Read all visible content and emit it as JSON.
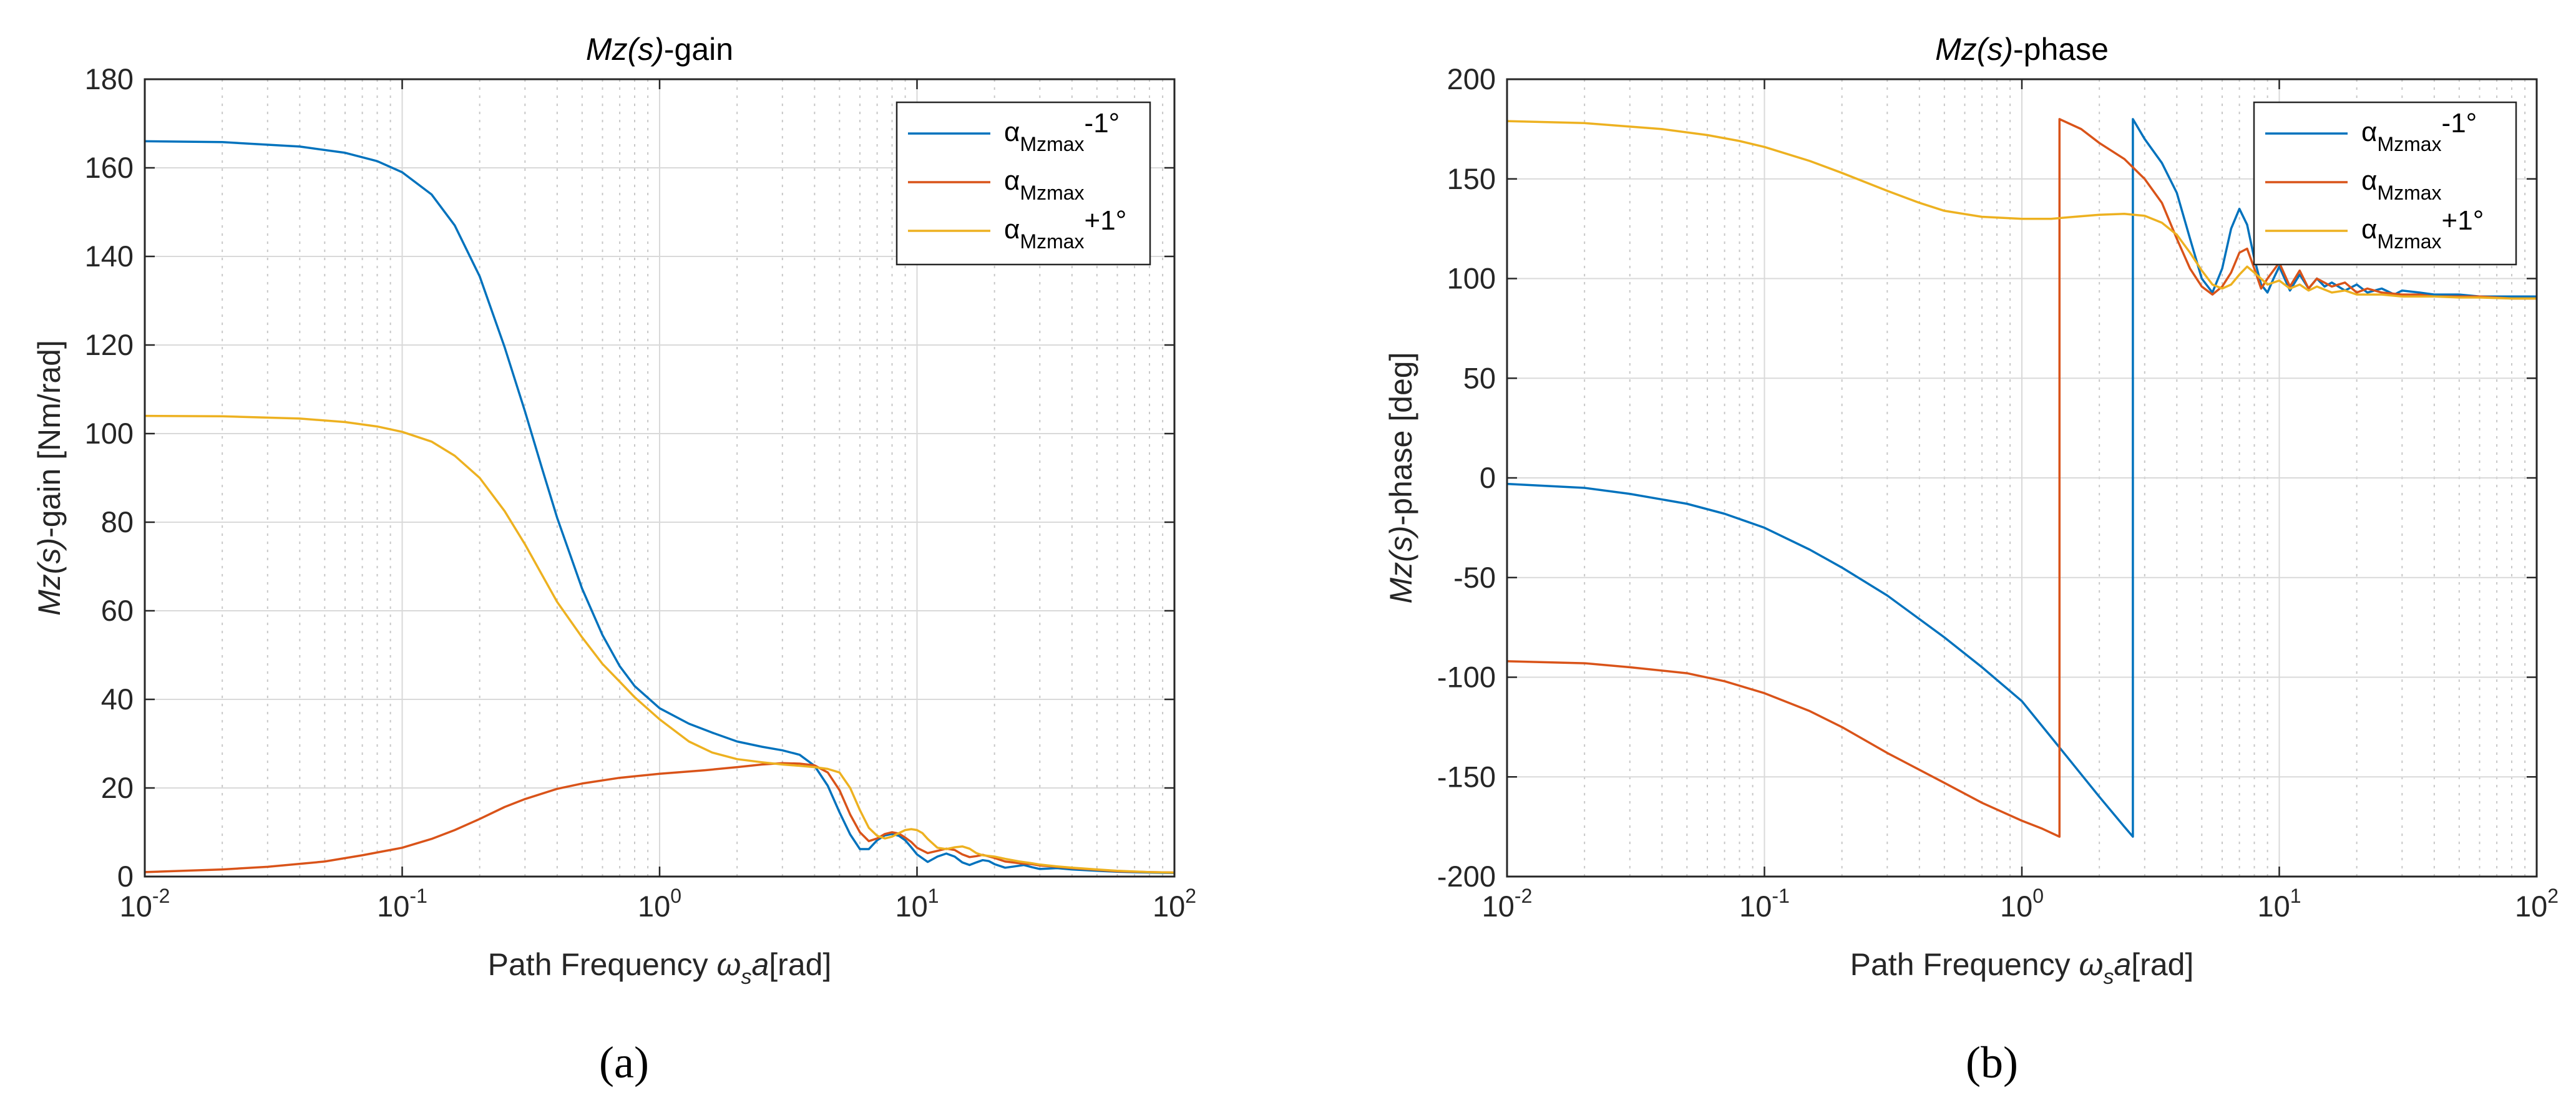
{
  "figure": {
    "subcaption_a": "(a)",
    "subcaption_b": "(b)"
  },
  "chart_data": [
    {
      "type": "line",
      "title_italic": "Mz(s)",
      "title_rest": "-gain",
      "xlabel_prefix": "Path Frequency ",
      "xlabel_omega": "ω",
      "xlabel_sub": "s",
      "xlabel_a": "a",
      "xlabel_suffix": "[rad]",
      "ylabel_italic": "Mz(s)",
      "ylabel_rest": "-gain [Nm/rad]",
      "xscale": "log",
      "xlim": [
        0.01,
        100
      ],
      "ylim": [
        0,
        180
      ],
      "xticks": [
        {
          "base": "10",
          "exp": "-2"
        },
        {
          "base": "10",
          "exp": "-1"
        },
        {
          "base": "10",
          "exp": "0"
        },
        {
          "base": "10",
          "exp": "1"
        },
        {
          "base": "10",
          "exp": "2"
        }
      ],
      "yticks": [
        "0",
        "20",
        "40",
        "60",
        "80",
        "100",
        "120",
        "140",
        "160",
        "180"
      ],
      "grid": true,
      "legend_position": "top-right",
      "series": [
        {
          "name": "α",
          "name_sub": "Mzmax",
          "name_suffix": "-1°",
          "color": "#0072BD",
          "x": [
            0.01,
            0.02,
            0.04,
            0.06,
            0.08,
            0.1,
            0.13,
            0.16,
            0.2,
            0.25,
            0.3,
            0.35,
            0.4,
            0.5,
            0.6,
            0.7,
            0.8,
            1.0,
            1.3,
            1.6,
            2.0,
            2.5,
            3.0,
            3.5,
            4.0,
            4.5,
            5.0,
            5.5,
            6.0,
            6.5,
            7.0,
            7.5,
            8.0,
            8.5,
            9.0,
            9.5,
            10,
            11,
            12,
            13,
            14,
            15,
            16,
            17,
            18,
            19,
            20,
            22,
            24,
            26,
            28,
            30,
            35,
            40,
            50,
            60,
            80,
            100
          ],
          "values": [
            166,
            165.8,
            164.8,
            163.4,
            161.5,
            159,
            154,
            147,
            135.5,
            119.5,
            105,
            92,
            81,
            65,
            54.5,
            47.5,
            43,
            38,
            34.5,
            32.5,
            30.5,
            29.3,
            28.5,
            27.5,
            25,
            20.5,
            14.5,
            9.5,
            6.2,
            6.2,
            8.2,
            9.3,
            9.6,
            9.2,
            8.2,
            6.6,
            5,
            3.3,
            4.5,
            5.2,
            4.5,
            3.2,
            2.6,
            3.2,
            3.7,
            3.5,
            2.8,
            2.0,
            2.3,
            2.6,
            2.1,
            1.7,
            1.9,
            1.6,
            1.3,
            1.1,
            0.9,
            0.8
          ]
        },
        {
          "name": "α",
          "name_sub": "Mzmax",
          "name_suffix": "",
          "color": "#D95319",
          "x": [
            0.01,
            0.02,
            0.03,
            0.05,
            0.07,
            0.1,
            0.13,
            0.16,
            0.2,
            0.25,
            0.3,
            0.4,
            0.5,
            0.7,
            1.0,
            1.5,
            2.0,
            2.5,
            3.0,
            3.5,
            4.0,
            4.5,
            5.0,
            5.5,
            6.0,
            6.5,
            7.0,
            7.5,
            8.0,
            8.5,
            9.0,
            9.5,
            10,
            11,
            12,
            13,
            14,
            15,
            16,
            17,
            18,
            20,
            22,
            25,
            28,
            30,
            35,
            40,
            50,
            60,
            80,
            100
          ],
          "values": [
            1,
            1.6,
            2.2,
            3.4,
            4.8,
            6.5,
            8.5,
            10.5,
            13,
            15.7,
            17.5,
            19.8,
            21,
            22.3,
            23.2,
            24,
            24.7,
            25.3,
            25.6,
            25.5,
            25.1,
            23.5,
            19.5,
            14,
            10,
            8,
            8.6,
            9.6,
            10,
            9.7,
            8.8,
            7.8,
            6.5,
            5.3,
            5.8,
            6.3,
            6.0,
            5.0,
            4.4,
            4.6,
            4.9,
            4.2,
            3.4,
            3.0,
            2.8,
            2.5,
            2.2,
            1.9,
            1.5,
            1.2,
            1.0,
            0.9
          ]
        },
        {
          "name": "α",
          "name_sub": "Mzmax",
          "name_suffix": "+1°",
          "color": "#EDB120",
          "x": [
            0.01,
            0.02,
            0.04,
            0.06,
            0.08,
            0.1,
            0.13,
            0.16,
            0.2,
            0.25,
            0.3,
            0.4,
            0.5,
            0.6,
            0.7,
            0.8,
            1.0,
            1.3,
            1.6,
            2.0,
            2.5,
            3.0,
            3.5,
            4.0,
            4.5,
            5.0,
            5.5,
            6.0,
            6.5,
            7.0,
            7.5,
            8.0,
            8.5,
            9.0,
            9.5,
            10,
            10.5,
            11,
            12,
            13,
            14,
            15,
            16,
            17,
            18,
            20,
            22,
            25,
            28,
            30,
            35,
            40,
            50,
            60,
            80,
            100
          ],
          "values": [
            104,
            103.9,
            103.4,
            102.6,
            101.6,
            100.4,
            98.2,
            95,
            90,
            82.5,
            75,
            62,
            54,
            48,
            44,
            40.5,
            35.5,
            30.5,
            28,
            26.5,
            25.8,
            25.3,
            25,
            24.7,
            24.3,
            23.5,
            20,
            15,
            11,
            9.2,
            8.6,
            9,
            9.8,
            10.5,
            10.7,
            10.5,
            9.8,
            8.5,
            6.5,
            6.2,
            6.6,
            6.8,
            6.3,
            5.3,
            4.8,
            4.5,
            4.0,
            3.4,
            3.0,
            2.7,
            2.3,
            2.0,
            1.6,
            1.3,
            1.0,
            0.9
          ]
        }
      ]
    },
    {
      "type": "line",
      "title_italic": "Mz(s)",
      "title_rest": "-phase",
      "xlabel_prefix": "Path Frequency ",
      "xlabel_omega": "ω",
      "xlabel_sub": "s",
      "xlabel_a": "a",
      "xlabel_suffix": "[rad]",
      "ylabel_italic": "Mz(s)",
      "ylabel_rest": "-phase [deg]",
      "xscale": "log",
      "xlim": [
        0.01,
        100
      ],
      "ylim": [
        -200,
        200
      ],
      "xticks": [
        {
          "base": "10",
          "exp": "-2"
        },
        {
          "base": "10",
          "exp": "-1"
        },
        {
          "base": "10",
          "exp": "0"
        },
        {
          "base": "10",
          "exp": "1"
        },
        {
          "base": "10",
          "exp": "2"
        }
      ],
      "yticks": [
        "-200",
        "-150",
        "-100",
        "-50",
        "0",
        "50",
        "100",
        "150",
        "200"
      ],
      "grid": true,
      "legend_position": "top-right",
      "series": [
        {
          "name": "α",
          "name_sub": "Mzmax",
          "name_suffix": "-1°",
          "color": "#0072BD",
          "x": [
            0.01,
            0.02,
            0.03,
            0.05,
            0.07,
            0.1,
            0.15,
            0.2,
            0.3,
            0.5,
            0.7,
            1.0,
            1.5,
            2.0,
            2.5,
            2.7,
            2.7,
            3.0,
            3.5,
            4.0,
            4.5,
            5.0,
            5.5,
            6.0,
            6.5,
            7.0,
            7.5,
            8.0,
            8.5,
            9.0,
            9.5,
            10,
            11,
            12,
            13,
            14,
            15,
            16,
            18,
            20,
            22,
            25,
            28,
            30,
            35,
            40,
            50,
            60,
            80,
            100
          ],
          "values": [
            -3,
            -5,
            -8,
            -13,
            -18,
            -25,
            -36,
            -45,
            -59,
            -80,
            -95,
            -112,
            -140,
            -160,
            -175,
            -180,
            180,
            170,
            158,
            143,
            120,
            100,
            93,
            105,
            125,
            135,
            127,
            110,
            97,
            93,
            100,
            106,
            94,
            102,
            95,
            100,
            96,
            98,
            94,
            97,
            93,
            95,
            92,
            94,
            93,
            92,
            92,
            91,
            91,
            91
          ]
        },
        {
          "name": "α",
          "name_sub": "Mzmax",
          "name_suffix": "",
          "color": "#D95319",
          "x": [
            0.01,
            0.02,
            0.03,
            0.05,
            0.07,
            0.1,
            0.15,
            0.2,
            0.3,
            0.5,
            0.7,
            1.0,
            1.2,
            1.4,
            1.4,
            1.7,
            2.0,
            2.5,
            3.0,
            3.5,
            4.0,
            4.5,
            5.0,
            5.5,
            6.0,
            6.5,
            7.0,
            7.5,
            8.0,
            8.5,
            9.0,
            10,
            11,
            12,
            13,
            14,
            16,
            18,
            20,
            22,
            25,
            30,
            35,
            40,
            50,
            60,
            80,
            100
          ],
          "values": [
            -92,
            -93,
            -95,
            -98,
            -102,
            -108,
            -117,
            -125,
            -138,
            -153,
            -163,
            -172,
            -176,
            -180,
            180,
            175,
            168,
            160,
            150,
            138,
            120,
            105,
            96,
            92,
            96,
            103,
            113,
            115,
            105,
            95,
            100,
            108,
            96,
            104,
            95,
            100,
            96,
            98,
            93,
            95,
            93,
            92,
            92,
            91,
            91,
            91,
            90,
            90
          ]
        },
        {
          "name": "α",
          "name_sub": "Mzmax",
          "name_suffix": "+1°",
          "color": "#EDB120",
          "x": [
            0.01,
            0.02,
            0.04,
            0.06,
            0.08,
            0.1,
            0.15,
            0.2,
            0.3,
            0.4,
            0.5,
            0.7,
            1.0,
            1.3,
            1.6,
            2.0,
            2.5,
            3.0,
            3.5,
            4.0,
            4.5,
            5.0,
            5.5,
            6.0,
            6.5,
            7.0,
            7.5,
            8.0,
            9.0,
            10,
            11,
            12,
            13,
            14,
            16,
            18,
            20,
            25,
            30,
            40,
            50,
            60,
            80,
            100
          ],
          "values": [
            179,
            178,
            175,
            172,
            169,
            166,
            159,
            153,
            144,
            138,
            134,
            131,
            130,
            130,
            131,
            132,
            132.5,
            131.5,
            128,
            122,
            113,
            104,
            97,
            95,
            97,
            102,
            106,
            103,
            97,
            99,
            95,
            97,
            94,
            96,
            93,
            94,
            92,
            92,
            91,
            91,
            90.5,
            90.5,
            90,
            90
          ]
        }
      ]
    }
  ]
}
